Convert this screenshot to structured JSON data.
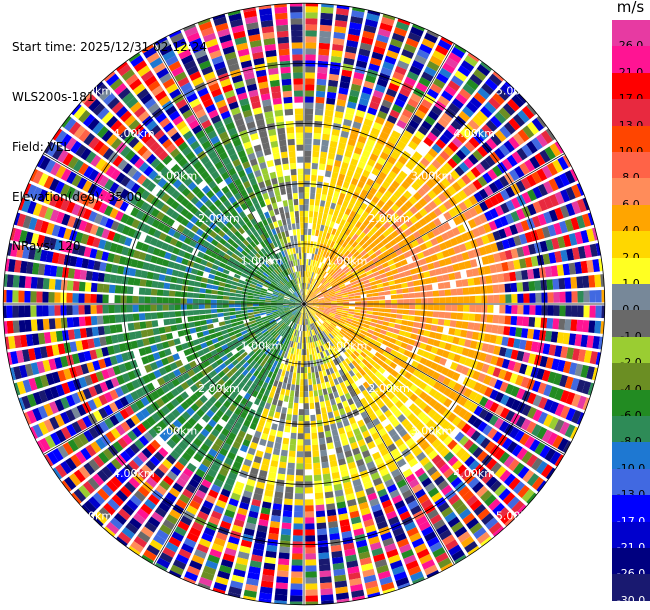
{
  "header": {
    "start_time": "Start time: 2025/12/31 02:12:24",
    "instrument": "WLS200s-181",
    "field": "Field: VEL",
    "elevation": "Elevation(deg): 35.00",
    "nrays": "NRays: 120"
  },
  "colorbar": {
    "unit": "m/s",
    "levels": [
      {
        "label": "26.0",
        "color": "#e73aa2"
      },
      {
        "label": "21.0",
        "color": "#ff1493"
      },
      {
        "label": "17.0",
        "color": "#ff0000"
      },
      {
        "label": "13.0",
        "color": "#e8293f"
      },
      {
        "label": "10.0",
        "color": "#ff4500"
      },
      {
        "label": "8.0",
        "color": "#ff6347"
      },
      {
        "label": "6.0",
        "color": "#ff8c5a"
      },
      {
        "label": "4.0",
        "color": "#ffa500"
      },
      {
        "label": "2.0",
        "color": "#ffd700"
      },
      {
        "label": "1.0",
        "color": "#ffff22"
      },
      {
        "label": "0.0",
        "color": "#778899"
      },
      {
        "label": "-1.0",
        "color": "#696969"
      },
      {
        "label": "-2.0",
        "color": "#9acd32"
      },
      {
        "label": "-4.0",
        "color": "#6b8e23"
      },
      {
        "label": "-6.0",
        "color": "#228b22"
      },
      {
        "label": "-8.0",
        "color": "#2e8b57"
      },
      {
        "label": "-10.0",
        "color": "#1e78d2"
      },
      {
        "label": "-13.0",
        "color": "#4169e1"
      },
      {
        "label": "-17.0",
        "color": "#0000ff"
      },
      {
        "label": "-21.0",
        "color": "#0000cd"
      },
      {
        "label": "-26.0",
        "color": "#000080"
      },
      {
        "label": "-30.0",
        "color": "#191970"
      }
    ]
  },
  "chart_data": {
    "type": "heatmap",
    "projection": "polar",
    "field": "VEL",
    "unit": "m/s",
    "elevation_deg": 35.0,
    "nrays": 120,
    "range_rings_km": [
      1.0,
      2.0,
      3.0,
      4.0,
      5.0
    ],
    "ring_labels": [
      {
        "ring": 1,
        "label": "1.00km"
      },
      {
        "ring": 2,
        "label": "2.00km"
      },
      {
        "ring": 3,
        "label": "3.00km"
      },
      {
        "ring": 4,
        "label": "4.00km"
      },
      {
        "ring": 5,
        "label": "5.00km"
      }
    ],
    "spokes_deg": [
      0,
      30,
      60,
      90,
      120,
      150,
      180,
      210,
      240,
      270,
      300,
      330
    ],
    "max_range_km": 5.0,
    "pattern": {
      "west_sector_mean_ms": -6.0,
      "northeast_sector_mean_ms": 2.0,
      "east_sector_mean_ms": 5.0,
      "south_sector_mean_ms": 1.0,
      "noise_beyond_km": 3.3
    }
  }
}
